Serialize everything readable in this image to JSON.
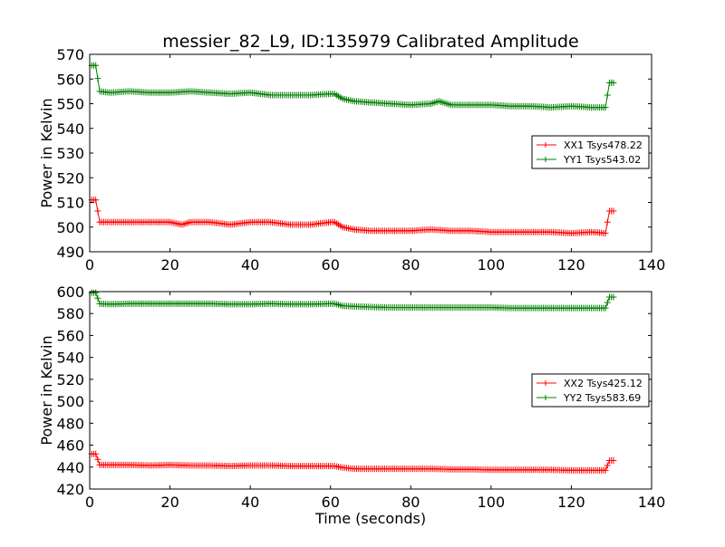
{
  "figure": {
    "title": "messier_82_L9, ID:135979 Calibrated Amplitude"
  },
  "chart_data": [
    {
      "type": "line",
      "title": "messier_82_L9, ID:135979 Calibrated Amplitude",
      "xlabel": "",
      "ylabel": "Power in Kelvin",
      "xlim": [
        0,
        140
      ],
      "ylim": [
        490,
        570
      ],
      "xticks": [
        0,
        20,
        40,
        60,
        80,
        100,
        120,
        140
      ],
      "yticks": [
        490,
        500,
        510,
        520,
        530,
        540,
        550,
        560,
        570
      ],
      "grid": false,
      "legend_position": "right",
      "series": [
        {
          "name": "XX1 Tsys478.22",
          "color": "#ff0000",
          "marker": "plus",
          "x": [
            0.5,
            1.5,
            2.5,
            5,
            10,
            15,
            20,
            23,
            25,
            30,
            35,
            40,
            45,
            50,
            55,
            60,
            61,
            63,
            66,
            70,
            75,
            80,
            85,
            90,
            95,
            100,
            105,
            110,
            115,
            120,
            125,
            128.5,
            129.5,
            130.5
          ],
          "values": [
            511,
            511,
            502,
            502,
            502,
            502,
            502,
            501,
            502,
            502,
            501,
            502,
            502,
            501,
            501,
            502,
            502,
            500,
            499,
            498.5,
            498.5,
            498.5,
            499,
            498.5,
            498.5,
            498,
            498,
            498,
            498,
            497.5,
            498,
            497.5,
            506.5,
            506.5
          ]
        },
        {
          "name": "YY1 Tsys543.02",
          "color": "#008000",
          "marker": "plus",
          "x": [
            0.5,
            1.5,
            2.5,
            5,
            10,
            15,
            20,
            25,
            30,
            35,
            40,
            45,
            50,
            55,
            60,
            61,
            63,
            66,
            70,
            75,
            80,
            85,
            87,
            90,
            95,
            100,
            105,
            110,
            115,
            120,
            125,
            128.5,
            129.5,
            130.5
          ],
          "values": [
            565.5,
            565.5,
            555,
            554.5,
            555,
            554.5,
            554.5,
            555,
            554.5,
            554,
            554.5,
            553.5,
            553.5,
            553.5,
            554,
            554,
            552,
            551,
            550.5,
            550,
            549.5,
            550,
            551,
            549.5,
            549.5,
            549.5,
            549,
            549,
            548.5,
            549,
            548.5,
            548.5,
            558.5,
            558.5
          ]
        }
      ]
    },
    {
      "type": "line",
      "title": "",
      "xlabel": "Time (seconds)",
      "ylabel": "Power in Kelvin",
      "xlim": [
        0,
        140
      ],
      "ylim": [
        420,
        600
      ],
      "xticks": [
        0,
        20,
        40,
        60,
        80,
        100,
        120,
        140
      ],
      "yticks": [
        420,
        440,
        460,
        480,
        500,
        520,
        540,
        560,
        580,
        600
      ],
      "grid": false,
      "legend_position": "right",
      "series": [
        {
          "name": "XX2 Tsys425.12",
          "color": "#ff0000",
          "marker": "plus",
          "x": [
            0.5,
            1.5,
            2.5,
            5,
            10,
            15,
            20,
            25,
            30,
            35,
            40,
            45,
            50,
            55,
            60,
            61,
            63,
            66,
            70,
            75,
            80,
            85,
            90,
            95,
            100,
            105,
            110,
            115,
            120,
            125,
            128.5,
            129.5,
            130.5
          ],
          "values": [
            452,
            452,
            442,
            442,
            442,
            441.5,
            442,
            441.5,
            441.5,
            441,
            441.5,
            441.5,
            441,
            441,
            441,
            441,
            439.5,
            438.5,
            438.5,
            438.5,
            438.5,
            438.5,
            438,
            438,
            437.5,
            437.5,
            437.5,
            437.5,
            437,
            437,
            437,
            446,
            446
          ]
        },
        {
          "name": "YY2 Tsys583.69",
          "color": "#008000",
          "marker": "plus",
          "x": [
            0.5,
            1.5,
            2.5,
            5,
            10,
            15,
            20,
            25,
            30,
            35,
            40,
            45,
            50,
            55,
            60,
            61,
            63,
            66,
            70,
            75,
            80,
            85,
            90,
            95,
            100,
            105,
            110,
            115,
            120,
            125,
            128.5,
            129.5,
            130.5
          ],
          "values": [
            599,
            599,
            589,
            588.5,
            589,
            589,
            589,
            589,
            589,
            588.5,
            588.5,
            589,
            588.5,
            588.5,
            589,
            589,
            587,
            586.5,
            586,
            585.5,
            585.5,
            585.5,
            585.5,
            585.5,
            585.5,
            585,
            585,
            585,
            585,
            585,
            585,
            595,
            595
          ]
        }
      ]
    }
  ]
}
